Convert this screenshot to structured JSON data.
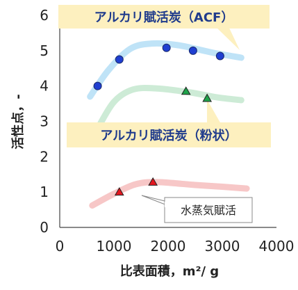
{
  "chart_data": {
    "type": "scatter",
    "xlabel": "比表面積，m²/ g",
    "ylabel": "活性点，-",
    "xlim": [
      0,
      4000
    ],
    "ylim": [
      0,
      6
    ],
    "xticks": [
      "0",
      "1000",
      "2000",
      "3000",
      "4000"
    ],
    "yticks": [
      "0",
      "1",
      "2",
      "3",
      "4",
      "5",
      "6"
    ],
    "grid": false,
    "series": [
      {
        "name": "アルカリ賦活炭（ACF）",
        "marker": "circle",
        "color": "#1f3fd1",
        "trend_color": "#bfe3f7",
        "points": [
          [
            700,
            4.0
          ],
          [
            1100,
            4.75
          ],
          [
            1970,
            5.08
          ],
          [
            2460,
            5.0
          ],
          [
            2960,
            4.85
          ]
        ],
        "trend": [
          [
            560,
            3.7
          ],
          [
            900,
            4.45
          ],
          [
            1300,
            5.05
          ],
          [
            1700,
            5.2
          ],
          [
            2200,
            5.15
          ],
          [
            2800,
            4.95
          ],
          [
            3350,
            4.8
          ]
        ]
      },
      {
        "name": "アルカリ賦活炭（粉状）",
        "marker": "triangle",
        "color": "#1ea34a",
        "trend_color": "#cdebd6",
        "points": [
          [
            2330,
            3.85
          ],
          [
            2720,
            3.65
          ]
        ],
        "trend": [
          [
            700,
            2.8
          ],
          [
            1000,
            3.55
          ],
          [
            1350,
            3.9
          ],
          [
            1800,
            3.93
          ],
          [
            2400,
            3.82
          ],
          [
            2900,
            3.68
          ],
          [
            3350,
            3.6
          ]
        ]
      },
      {
        "name": "水蒸気賦活",
        "marker": "triangle",
        "color": "#e4161e",
        "trend_color": "#f7c7c7",
        "points": [
          [
            1100,
            1.0
          ],
          [
            1720,
            1.28
          ]
        ],
        "trend": [
          [
            600,
            0.62
          ],
          [
            1000,
            0.95
          ],
          [
            1400,
            1.22
          ],
          [
            1800,
            1.28
          ],
          [
            2500,
            1.2
          ],
          [
            3000,
            1.15
          ],
          [
            3450,
            1.1
          ]
        ]
      }
    ]
  },
  "callouts": {
    "acf": "アルカリ賦活炭（ACF）",
    "powder": "アルカリ賦活炭（粉状）",
    "steam": "水蒸気賦活"
  }
}
